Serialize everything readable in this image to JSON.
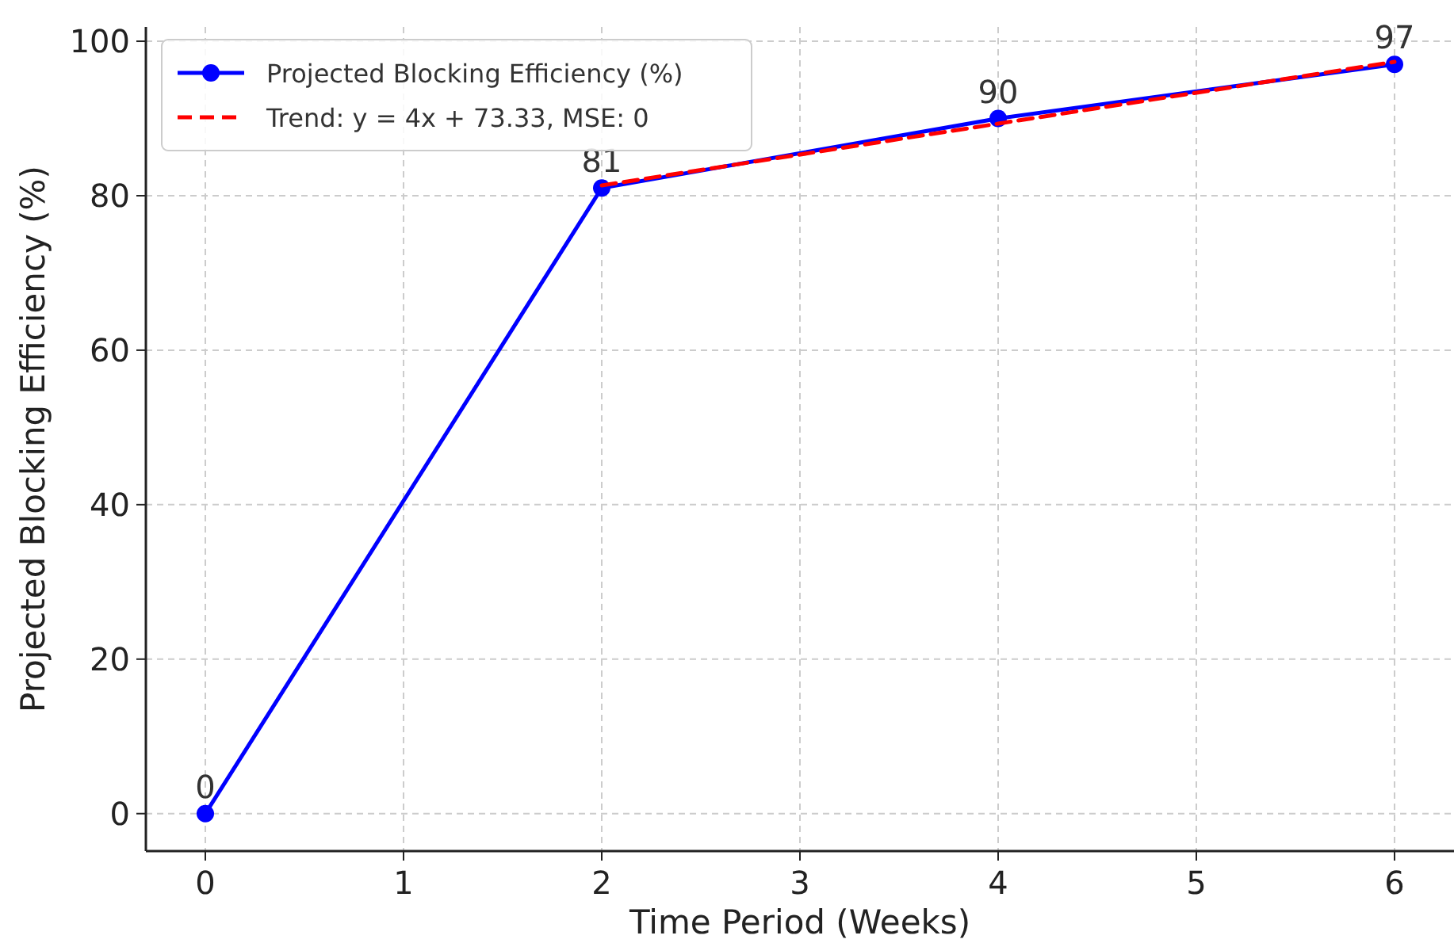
{
  "chart_data": {
    "type": "line",
    "xlabel": "Time Period (Weeks)",
    "ylabel": "Projected Blocking Efficiency (%)",
    "xlim": [
      -0.3,
      6.3
    ],
    "ylim": [
      -4.85,
      101.85
    ],
    "xticks": [
      0,
      1,
      2,
      3,
      4,
      5,
      6
    ],
    "yticks": [
      0,
      20,
      40,
      60,
      80,
      100
    ],
    "grid": true,
    "legend": "top left",
    "series": [
      {
        "name": "Projected Blocking Efficiency (%)",
        "color": "#0000ff",
        "x": [
          0,
          2,
          4,
          6
        ],
        "values": [
          0,
          81,
          90,
          97
        ],
        "marker": "circle",
        "line_style": "solid",
        "data_labels": true
      },
      {
        "name": "Trend: y = 4x + 73.33, MSE: 0",
        "color": "#ff0000",
        "x": [
          2,
          4,
          6
        ],
        "values": [
          81.33,
          89.33,
          97.33
        ],
        "marker": "none",
        "line_style": "dashed"
      }
    ]
  }
}
